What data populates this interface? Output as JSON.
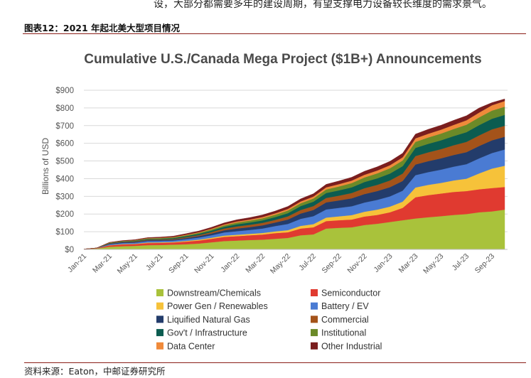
{
  "page": {
    "top_text": "设，大部分都需要多年的建设周期，有望支撑电力设备较长维度的需求景气。",
    "figure_caption": "图表12：2021 年起北美大型项目情况",
    "source": "资料来源：Eaton，中邮证券研究所"
  },
  "chart_data": {
    "type": "area",
    "stacked": true,
    "title": "Cumulative U.S./Canada Mega Project ($1B+) Announcements",
    "xlabel": "",
    "ylabel": "Billions of USD",
    "ylim": [
      0,
      900
    ],
    "yticks": [
      "$0",
      "$100",
      "$200",
      "$300",
      "$400",
      "$500",
      "$600",
      "$700",
      "$800",
      "$900"
    ],
    "grid": "horizontal",
    "legend_position": "bottom",
    "x": [
      "Jan-21",
      "Feb-21",
      "Mar-21",
      "Apr-21",
      "May-21",
      "Jun-21",
      "Jul-21",
      "Aug-21",
      "Sep-21",
      "Oct-21",
      "Nov-21",
      "Dec-21",
      "Jan-22",
      "Feb-22",
      "Mar-22",
      "Apr-22",
      "May-22",
      "Jun-22",
      "Jul-22",
      "Aug-22",
      "Sep-22",
      "Oct-22",
      "Nov-22",
      "Dec-22",
      "Jan-23",
      "Feb-23",
      "Mar-23",
      "Apr-23",
      "May-23",
      "Jun-23",
      "Jul-23",
      "Aug-23",
      "Sep-23",
      "Oct-23"
    ],
    "xtick_labels": [
      "Jan-21",
      "Mar-21",
      "May-21",
      "Jul-21",
      "Sep-21",
      "Nov-21",
      "Jan-22",
      "Mar-22",
      "May-22",
      "Jul-22",
      "Sep-22",
      "Nov-22",
      "Jan-23",
      "Mar-23",
      "May-23",
      "Jul-23",
      "Sep-23"
    ],
    "series": [
      {
        "name": "Downstream/Chemicals",
        "color": "#a9c23b",
        "values": [
          2,
          5,
          15,
          18,
          20,
          24,
          25,
          27,
          29,
          33,
          40,
          47,
          50,
          53,
          55,
          60,
          65,
          80,
          85,
          118,
          122,
          125,
          138,
          145,
          155,
          165,
          175,
          182,
          188,
          195,
          200,
          210,
          215,
          225
        ]
      },
      {
        "name": "Semiconductor",
        "color": "#e03a30",
        "values": [
          0,
          2,
          8,
          10,
          10,
          12,
          12,
          12,
          15,
          17,
          20,
          24,
          25,
          27,
          29,
          32,
          32,
          38,
          40,
          42,
          43,
          44,
          48,
          50,
          55,
          70,
          120,
          125,
          128,
          130,
          130,
          130,
          132,
          128
        ]
      },
      {
        "name": "Power Gen / Renewables",
        "color": "#f6c23a",
        "values": [
          0,
          0,
          1,
          2,
          2,
          3,
          3,
          3,
          4,
          5,
          6,
          7,
          8,
          8,
          9,
          10,
          12,
          15,
          18,
          20,
          22,
          25,
          27,
          30,
          32,
          35,
          55,
          58,
          60,
          65,
          70,
          90,
          110,
          120
        ]
      },
      {
        "name": "Battery / EV",
        "color": "#4a7bd3",
        "values": [
          0,
          1,
          5,
          6,
          6,
          8,
          8,
          8,
          10,
          12,
          14,
          18,
          20,
          22,
          25,
          30,
          35,
          40,
          45,
          46,
          48,
          50,
          52,
          55,
          58,
          62,
          70,
          72,
          75,
          78,
          82,
          85,
          88,
          92
        ]
      },
      {
        "name": "Liquified Natural Gas",
        "color": "#233c6b",
        "values": [
          0,
          0,
          3,
          4,
          4,
          5,
          5,
          5,
          6,
          8,
          10,
          12,
          15,
          16,
          18,
          20,
          25,
          30,
          35,
          40,
          42,
          45,
          48,
          50,
          52,
          55,
          60,
          62,
          64,
          66,
          68,
          70,
          72,
          72
        ]
      },
      {
        "name": "Commercial",
        "color": "#a4531a",
        "values": [
          0,
          0,
          2,
          2,
          3,
          3,
          3,
          4,
          5,
          6,
          8,
          10,
          12,
          13,
          14,
          15,
          18,
          20,
          22,
          25,
          27,
          30,
          33,
          35,
          38,
          42,
          48,
          50,
          52,
          55,
          58,
          60,
          62,
          62
        ]
      },
      {
        "name": "Gov't / Infrastructure",
        "color": "#0b5c50",
        "values": [
          0,
          0,
          2,
          3,
          3,
          4,
          4,
          5,
          6,
          7,
          8,
          10,
          12,
          13,
          14,
          16,
          18,
          22,
          25,
          28,
          30,
          32,
          35,
          37,
          39,
          42,
          46,
          48,
          50,
          52,
          55,
          58,
          60,
          62
        ]
      },
      {
        "name": "Institutional",
        "color": "#6b8a28",
        "values": [
          0,
          0,
          2,
          2,
          3,
          3,
          4,
          4,
          5,
          6,
          7,
          8,
          10,
          11,
          12,
          13,
          15,
          16,
          18,
          20,
          22,
          24,
          26,
          28,
          30,
          32,
          34,
          36,
          38,
          40,
          42,
          44,
          46,
          46
        ]
      },
      {
        "name": "Data Center",
        "color": "#f08a3a",
        "values": [
          0,
          0,
          1,
          1,
          1,
          2,
          2,
          2,
          3,
          3,
          4,
          5,
          6,
          6,
          7,
          8,
          9,
          10,
          11,
          12,
          13,
          14,
          15,
          16,
          17,
          18,
          20,
          21,
          22,
          23,
          25,
          27,
          30,
          32
        ]
      },
      {
        "name": "Other Industrial",
        "color": "#7a1e1e",
        "values": [
          0,
          0,
          1,
          2,
          3,
          3,
          4,
          5,
          6,
          7,
          8,
          9,
          10,
          11,
          12,
          13,
          14,
          15,
          16,
          17,
          18,
          19,
          20,
          21,
          22,
          23,
          24,
          25,
          25,
          26,
          26,
          26,
          15,
          12
        ]
      }
    ]
  }
}
